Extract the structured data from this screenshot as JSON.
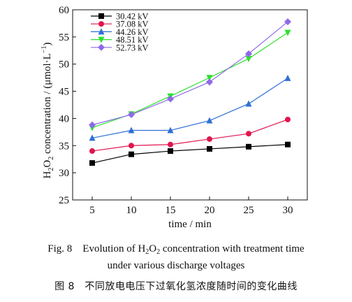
{
  "chart_data": {
    "type": "line",
    "x": [
      5,
      10,
      15,
      20,
      25,
      30
    ],
    "xlabel": "time / min",
    "ylabel_parts": [
      "H",
      "2",
      "O",
      "2",
      " concentration / (μmol·L",
      "−1",
      ")"
    ],
    "xlim": [
      2.5,
      32.5
    ],
    "ylim": [
      25,
      60
    ],
    "xticks": [
      "5",
      "10",
      "15",
      "20",
      "25",
      "30"
    ],
    "yticks": [
      "25",
      "30",
      "35",
      "40",
      "45",
      "50",
      "55",
      "60"
    ],
    "legend_position": "top-left",
    "grid": false,
    "series": [
      {
        "name": "30.42 kV",
        "color": "#000000",
        "marker": "square",
        "values": [
          31.8,
          33.4,
          34.0,
          34.4,
          34.8,
          35.2
        ]
      },
      {
        "name": "37.08 kV",
        "color": "#e0154e",
        "marker": "circle",
        "values": [
          34.0,
          35.0,
          35.2,
          36.2,
          37.2,
          39.8
        ]
      },
      {
        "name": "44.26 kV",
        "color": "#2f6fd6",
        "marker": "triangle-up",
        "values": [
          36.4,
          37.8,
          37.8,
          39.6,
          42.7,
          47.4
        ]
      },
      {
        "name": "48.51 kV",
        "color": "#2ee02e",
        "marker": "triangle-down",
        "values": [
          38.3,
          40.8,
          44.1,
          47.5,
          51.0,
          55.8
        ]
      },
      {
        "name": "52.73 kV",
        "color": "#8e6ae8",
        "marker": "diamond",
        "values": [
          38.8,
          40.7,
          43.6,
          46.7,
          51.9,
          57.8
        ]
      }
    ]
  },
  "caption": {
    "en_line1_parts": [
      "Fig. 8",
      "Evolution of H",
      "2",
      "O",
      "2",
      " concentration with treatment time"
    ],
    "en_line2": "under various discharge voltages",
    "zh": "图 8　不同放电电压下过氧化氢浓度随时间的变化曲线"
  }
}
